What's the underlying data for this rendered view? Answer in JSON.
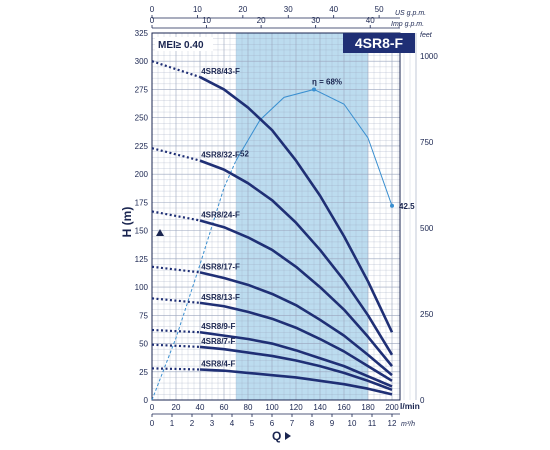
{
  "chart_data": {
    "type": "line",
    "title": "4SR8-F",
    "mei_label": "MEI≥ 0.40",
    "xlabel": "Q",
    "ylabel": "H (m)",
    "x_unit": "l/min",
    "x2_unit": "m³/h",
    "top_unit_1": "US g.p.m.",
    "top_unit_2": "Imp g.p.m.",
    "right_unit": "feet",
    "xlim": [
      0,
      220
    ],
    "ylim": [
      0,
      325
    ],
    "x_ticks": [
      0,
      20,
      40,
      60,
      80,
      100,
      120,
      140,
      160,
      180,
      200
    ],
    "y_ticks": [
      0,
      25,
      50,
      75,
      100,
      125,
      150,
      175,
      200,
      225,
      250,
      275,
      300,
      325
    ],
    "m3h_ticks": [
      0,
      1,
      2,
      3,
      4,
      5,
      6,
      7,
      8,
      9,
      10,
      11,
      12
    ],
    "usgpm_ticks": [
      0,
      10,
      20,
      30,
      40,
      50
    ],
    "impgpm_ticks": [
      0,
      10,
      20,
      30,
      40
    ],
    "feet_ticks": [
      0,
      250,
      500,
      750,
      1000
    ],
    "shaded_range": [
      70,
      180
    ],
    "series": [
      {
        "name": "4SR8/43-F",
        "shutoff": 300,
        "x": [
          40,
          60,
          80,
          100,
          120,
          140,
          160,
          180,
          200
        ],
        "values": [
          286,
          275,
          259,
          239,
          212,
          181,
          145,
          105,
          60
        ]
      },
      {
        "name": "4SR8/32-F",
        "shutoff": 223,
        "x": [
          40,
          60,
          80,
          100,
          120,
          140,
          160,
          180,
          200
        ],
        "values": [
          212,
          204,
          192,
          177,
          157,
          133,
          106,
          75,
          40
        ]
      },
      {
        "name": "4SR8/24-F",
        "shutoff": 167,
        "x": [
          40,
          60,
          80,
          100,
          120,
          140,
          160,
          180,
          200
        ],
        "values": [
          159,
          153,
          144,
          133,
          118,
          100,
          80,
          56,
          30
        ]
      },
      {
        "name": "4SR8/17-F",
        "shutoff": 118,
        "x": [
          40,
          60,
          80,
          100,
          120,
          140,
          160,
          180,
          200
        ],
        "values": [
          113,
          108,
          102,
          94,
          84,
          71,
          57,
          40,
          22
        ]
      },
      {
        "name": "4SR8/13-F",
        "shutoff": 90,
        "x": [
          40,
          60,
          80,
          100,
          120,
          140,
          160,
          180,
          200
        ],
        "values": [
          86,
          83,
          78,
          72,
          64,
          54,
          43,
          30,
          17
        ]
      },
      {
        "name": "4SR8/9-F",
        "shutoff": 62,
        "x": [
          40,
          60,
          80,
          100,
          120,
          140,
          160,
          180,
          200
        ],
        "values": [
          60,
          57,
          54,
          50,
          44,
          37,
          30,
          21,
          12
        ]
      },
      {
        "name": "4SR8/7-F",
        "shutoff": 49,
        "x": [
          40,
          60,
          80,
          100,
          120,
          140,
          160,
          180,
          200
        ],
        "values": [
          47,
          45,
          42,
          39,
          35,
          30,
          24,
          17,
          9
        ]
      },
      {
        "name": "4SR8/4-F",
        "shutoff": 28,
        "x": [
          40,
          60,
          80,
          100,
          120,
          140,
          160,
          180,
          200
        ],
        "values": [
          27,
          26,
          24,
          22,
          20,
          17,
          14,
          10,
          5
        ]
      }
    ],
    "efficiency": {
      "peak_label": "η = 68%",
      "peak_x": 135,
      "peak_y": 275,
      "start_label": "52",
      "start_x": 70,
      "start_y": 212,
      "end_label": "42.5",
      "end_x": 200,
      "end_y": 172,
      "points": [
        [
          0,
          0
        ],
        [
          20,
          55
        ],
        [
          40,
          120
        ],
        [
          60,
          188
        ],
        [
          70,
          212
        ],
        [
          90,
          248
        ],
        [
          110,
          268
        ],
        [
          135,
          275
        ],
        [
          160,
          262
        ],
        [
          180,
          232
        ],
        [
          200,
          172
        ]
      ]
    }
  },
  "colors": {
    "curve": "#1f2f75",
    "efficiency": "#3a8fd0",
    "shade": "#bcdcef",
    "grid": "#9aa4bd",
    "title_bg": "#1f2f75"
  }
}
